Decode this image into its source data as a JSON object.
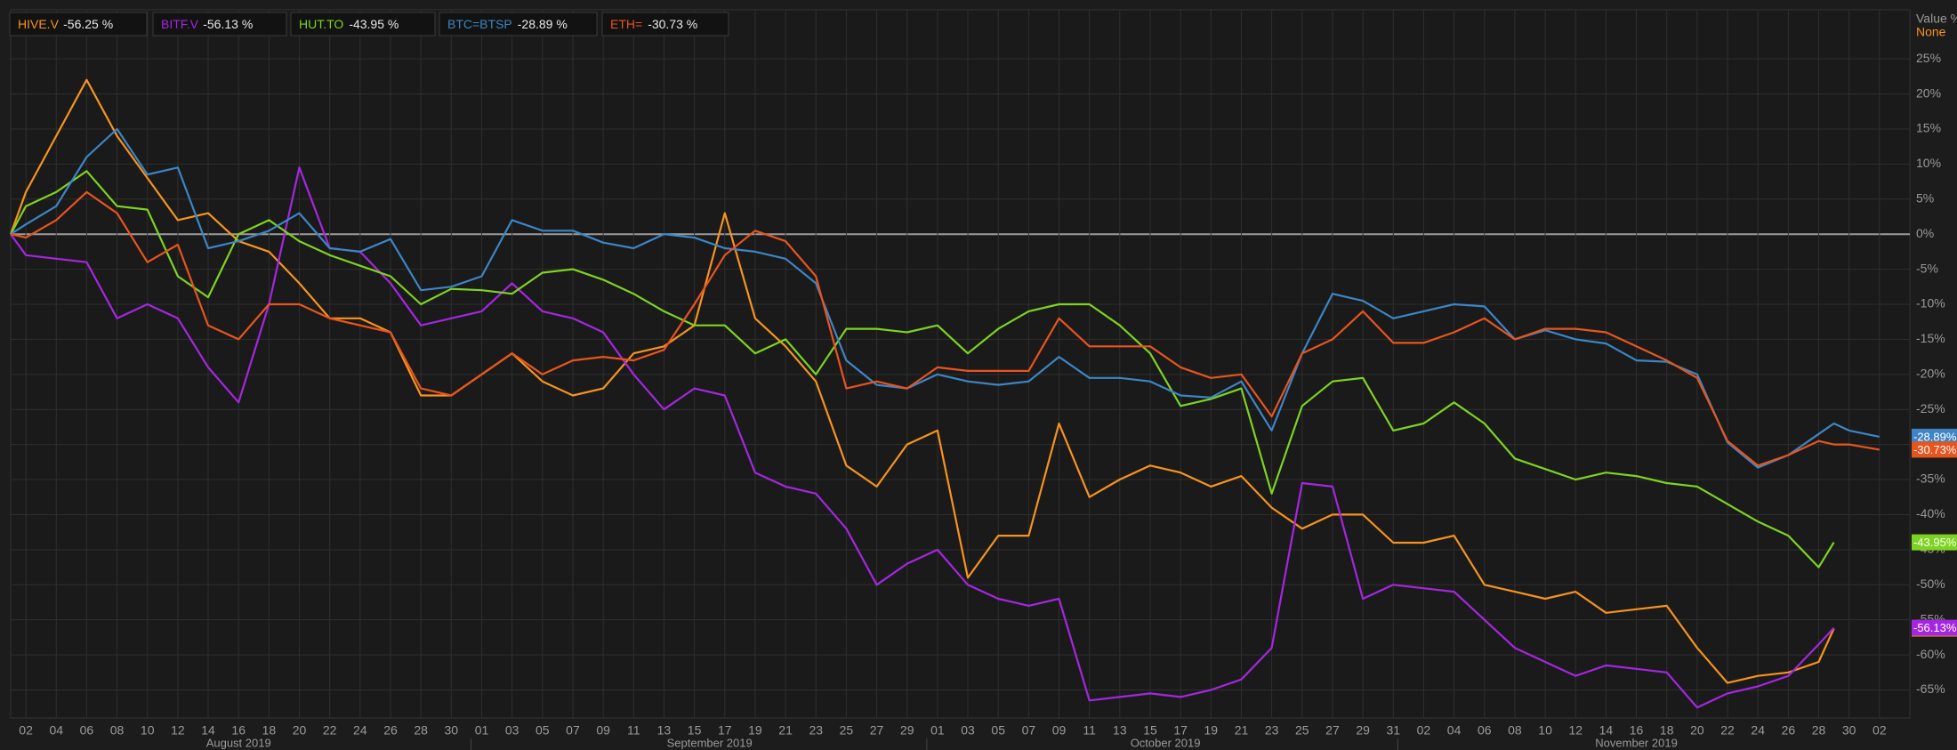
{
  "chart_data": {
    "type": "line",
    "x": [
      "2019-08-01",
      "2019-08-02",
      "2019-08-04",
      "2019-08-06",
      "2019-08-08",
      "2019-08-10",
      "2019-08-12",
      "2019-08-14",
      "2019-08-16",
      "2019-08-18",
      "2019-08-20",
      "2019-08-22",
      "2019-08-24",
      "2019-08-26",
      "2019-08-28",
      "2019-08-30",
      "2019-09-01",
      "2019-09-03",
      "2019-09-05",
      "2019-09-07",
      "2019-09-09",
      "2019-09-11",
      "2019-09-13",
      "2019-09-15",
      "2019-09-17",
      "2019-09-19",
      "2019-09-21",
      "2019-09-23",
      "2019-09-25",
      "2019-09-27",
      "2019-09-29",
      "2019-10-01",
      "2019-10-03",
      "2019-10-05",
      "2019-10-07",
      "2019-10-09",
      "2019-10-11",
      "2019-10-13",
      "2019-10-15",
      "2019-10-17",
      "2019-10-19",
      "2019-10-21",
      "2019-10-23",
      "2019-10-25",
      "2019-10-27",
      "2019-10-29",
      "2019-10-31",
      "2019-11-02",
      "2019-11-04",
      "2019-11-06",
      "2019-11-08",
      "2019-11-10",
      "2019-11-12",
      "2019-11-14",
      "2019-11-16",
      "2019-11-18",
      "2019-11-20",
      "2019-11-22",
      "2019-11-24",
      "2019-11-26",
      "2019-11-28",
      "2019-11-29",
      "2019-11-30",
      "2019-12-02"
    ],
    "series": [
      {
        "name": "HIVE.V",
        "legend_value": "-56.25 %",
        "tag": "-56.25%",
        "color": "#f7931e",
        "values": [
          0,
          6,
          14,
          22,
          14,
          8,
          2,
          3,
          -1,
          -2.5,
          -7,
          -12,
          -12,
          -14,
          -23,
          -23,
          -20,
          -17,
          -21,
          -23,
          -22,
          -17,
          -16,
          -13,
          3,
          -12,
          -16,
          -21,
          -33,
          -36,
          -30,
          -28,
          -49,
          -43,
          -43,
          -27,
          -37.5,
          -35,
          -33,
          -34,
          -36,
          -34.5,
          -39,
          -42,
          -40,
          -40,
          -44,
          -44,
          -43,
          -50,
          -51,
          -52,
          -51,
          -54,
          -53.5,
          -53,
          -59,
          -64,
          -63,
          -62.5,
          -61,
          -56.25,
          null,
          null
        ]
      },
      {
        "name": "BITF.V",
        "legend_value": "-56.13 %",
        "tag": "-56.13%",
        "color": "#a526e0",
        "values": [
          0,
          -3,
          -3.5,
          -4,
          -12,
          -10,
          -12,
          -19,
          -24,
          -10,
          9.5,
          -2,
          -2.5,
          -7,
          -13,
          -12,
          -11,
          -7,
          -11,
          -12,
          -14,
          -20,
          -25,
          -22,
          -23,
          -34,
          -36,
          -37,
          -42,
          -50,
          -47,
          -45,
          -50,
          -52,
          -53,
          -52,
          -66.5,
          -66,
          -65.5,
          -66,
          -65,
          -63.5,
          -59,
          -35.5,
          -36,
          -52,
          -50,
          -50.5,
          -51,
          -55,
          -59,
          -61,
          -63,
          -61.5,
          -62,
          -62.5,
          -67.5,
          -65.5,
          -64.5,
          -63,
          -58.5,
          -56.13,
          null,
          null
        ]
      },
      {
        "name": "HUT.TO",
        "legend_value": "-43.95 %",
        "tag": "-43.95%",
        "color": "#7ed321",
        "values": [
          0,
          4,
          6,
          9,
          4,
          3.5,
          -6,
          -9,
          0,
          2,
          -1,
          -3,
          -4.5,
          -6,
          -10,
          -7.8,
          -8,
          -8.5,
          -5.5,
          -5,
          -6.5,
          -8.5,
          -11,
          -13,
          -13,
          -17,
          -15,
          -20,
          -13.5,
          -13.5,
          -14,
          -13,
          -17,
          -13.5,
          -11,
          -10,
          -10,
          -13,
          -17,
          -24.5,
          -23.5,
          -22,
          -37,
          -24.5,
          -21,
          -20.5,
          -28,
          -27,
          -24,
          -27,
          -32,
          -33.5,
          -35,
          -34,
          -34.5,
          -35.5,
          -36,
          -38.5,
          -41,
          -43,
          -47.5,
          -43.95,
          null,
          null
        ]
      },
      {
        "name": "BTC=BTSP",
        "legend_value": "-28.89 %",
        "tag": "-28.89%",
        "color": "#3d85c6",
        "values": [
          0,
          1.4,
          4,
          11,
          15,
          8.5,
          9.5,
          -2,
          -1,
          0.5,
          3,
          -2,
          -2.5,
          -0.7,
          -8,
          -7.5,
          -6,
          2,
          0.5,
          0.5,
          -1.2,
          -2,
          0,
          -0.5,
          -2,
          -2.5,
          -3.5,
          -7,
          -18,
          -21.5,
          -22,
          -20,
          -21,
          -21.5,
          -21,
          -17.5,
          -20.5,
          -20.5,
          -21,
          -23,
          -23.3,
          -21,
          -28,
          -17,
          -8.5,
          -9.5,
          -12,
          -11,
          -10,
          -10.3,
          -15,
          -13.7,
          -15,
          -15.6,
          -18,
          -18.2,
          -20,
          -29.7,
          -33.3,
          -31.5,
          -28.5,
          -27,
          -28,
          -28.89
        ]
      },
      {
        "name": "ETH=",
        "legend_value": "-30.73 %",
        "tag": "-30.73%",
        "color": "#e8541e",
        "values": [
          0,
          -0.5,
          2,
          6,
          3,
          -4,
          -1.5,
          -13,
          -15,
          -10,
          -10,
          -12,
          -13,
          -14,
          -22,
          -23,
          -20,
          -17,
          -20,
          -18,
          -17.5,
          -18,
          -16.5,
          -10,
          -3,
          0.5,
          -1,
          -6,
          -22,
          -21,
          -22,
          -19,
          -19.5,
          -19.5,
          -19.5,
          -12,
          -16,
          -16,
          -16,
          -19,
          -20.5,
          -20,
          -26,
          -17,
          -15,
          -11,
          -15.5,
          -15.5,
          -14,
          -12,
          -15,
          -13.5,
          -13.5,
          -14,
          -16,
          -18,
          -20.5,
          -29.5,
          -33,
          -31.5,
          -29.5,
          -30,
          -30,
          -30.73
        ]
      }
    ],
    "xlim": [
      "2019-08-01",
      "2019-12-04"
    ],
    "xticks": [
      {
        "value": "2019-08-02",
        "label": "02"
      },
      {
        "value": "2019-08-04",
        "label": "04"
      },
      {
        "value": "2019-08-06",
        "label": "06"
      },
      {
        "value": "2019-08-08",
        "label": "08"
      },
      {
        "value": "2019-08-10",
        "label": "10"
      },
      {
        "value": "2019-08-12",
        "label": "12"
      },
      {
        "value": "2019-08-14",
        "label": "14"
      },
      {
        "value": "2019-08-16",
        "label": "16"
      },
      {
        "value": "2019-08-18",
        "label": "18"
      },
      {
        "value": "2019-08-20",
        "label": "20"
      },
      {
        "value": "2019-08-22",
        "label": "22"
      },
      {
        "value": "2019-08-24",
        "label": "24"
      },
      {
        "value": "2019-08-26",
        "label": "26"
      },
      {
        "value": "2019-08-28",
        "label": "28"
      },
      {
        "value": "2019-08-30",
        "label": "30"
      },
      {
        "value": "2019-09-01",
        "label": "01"
      },
      {
        "value": "2019-09-03",
        "label": "03"
      },
      {
        "value": "2019-09-05",
        "label": "05"
      },
      {
        "value": "2019-09-07",
        "label": "07"
      },
      {
        "value": "2019-09-09",
        "label": "09"
      },
      {
        "value": "2019-09-11",
        "label": "11"
      },
      {
        "value": "2019-09-13",
        "label": "13"
      },
      {
        "value": "2019-09-15",
        "label": "15"
      },
      {
        "value": "2019-09-17",
        "label": "17"
      },
      {
        "value": "2019-09-19",
        "label": "19"
      },
      {
        "value": "2019-09-21",
        "label": "21"
      },
      {
        "value": "2019-09-23",
        "label": "23"
      },
      {
        "value": "2019-09-25",
        "label": "25"
      },
      {
        "value": "2019-09-27",
        "label": "27"
      },
      {
        "value": "2019-09-29",
        "label": "29"
      },
      {
        "value": "2019-10-01",
        "label": "01"
      },
      {
        "value": "2019-10-03",
        "label": "03"
      },
      {
        "value": "2019-10-05",
        "label": "05"
      },
      {
        "value": "2019-10-07",
        "label": "07"
      },
      {
        "value": "2019-10-09",
        "label": "09"
      },
      {
        "value": "2019-10-11",
        "label": "11"
      },
      {
        "value": "2019-10-13",
        "label": "13"
      },
      {
        "value": "2019-10-15",
        "label": "15"
      },
      {
        "value": "2019-10-17",
        "label": "17"
      },
      {
        "value": "2019-10-19",
        "label": "19"
      },
      {
        "value": "2019-10-21",
        "label": "21"
      },
      {
        "value": "2019-10-23",
        "label": "23"
      },
      {
        "value": "2019-10-25",
        "label": "25"
      },
      {
        "value": "2019-10-27",
        "label": "27"
      },
      {
        "value": "2019-10-29",
        "label": "29"
      },
      {
        "value": "2019-10-31",
        "label": "31"
      },
      {
        "value": "2019-11-02",
        "label": "02"
      },
      {
        "value": "2019-11-04",
        "label": "04"
      },
      {
        "value": "2019-11-06",
        "label": "06"
      },
      {
        "value": "2019-11-08",
        "label": "08"
      },
      {
        "value": "2019-11-10",
        "label": "10"
      },
      {
        "value": "2019-11-12",
        "label": "12"
      },
      {
        "value": "2019-11-14",
        "label": "14"
      },
      {
        "value": "2019-11-16",
        "label": "16"
      },
      {
        "value": "2019-11-18",
        "label": "18"
      },
      {
        "value": "2019-11-20",
        "label": "20"
      },
      {
        "value": "2019-11-22",
        "label": "22"
      },
      {
        "value": "2019-11-24",
        "label": "24"
      },
      {
        "value": "2019-11-26",
        "label": "26"
      },
      {
        "value": "2019-11-28",
        "label": "28"
      },
      {
        "value": "2019-11-30",
        "label": "30"
      },
      {
        "value": "2019-12-02",
        "label": "02"
      }
    ],
    "months": [
      {
        "value": "2019-08",
        "label": "August 2019"
      },
      {
        "value": "2019-09",
        "label": "September 2019"
      },
      {
        "value": "2019-10",
        "label": "October 2019"
      },
      {
        "value": "2019-11",
        "label": "November 2019"
      }
    ],
    "ylim": [
      -69,
      32
    ],
    "yticks": [
      {
        "value": 25,
        "label": "25%"
      },
      {
        "value": 20,
        "label": "20%"
      },
      {
        "value": 15,
        "label": "15%"
      },
      {
        "value": 10,
        "label": "10%"
      },
      {
        "value": 5,
        "label": "5%"
      },
      {
        "value": 0,
        "label": "0%"
      },
      {
        "value": -5,
        "label": "-5%"
      },
      {
        "value": -10,
        "label": "-10%"
      },
      {
        "value": -15,
        "label": "-15%"
      },
      {
        "value": -20,
        "label": "-20%"
      },
      {
        "value": -25,
        "label": "-25%"
      },
      {
        "value": -30,
        "label": "-30%"
      },
      {
        "value": -35,
        "label": "-35%"
      },
      {
        "value": -40,
        "label": "-40%"
      },
      {
        "value": -45,
        "label": "-45%"
      },
      {
        "value": -50,
        "label": "-50%"
      },
      {
        "value": -55,
        "label": "-55%"
      },
      {
        "value": -60,
        "label": "-60%"
      },
      {
        "value": -65,
        "label": "-65%"
      }
    ],
    "axis_title": "Value %",
    "axis_subtitle": "None",
    "grid": true
  }
}
